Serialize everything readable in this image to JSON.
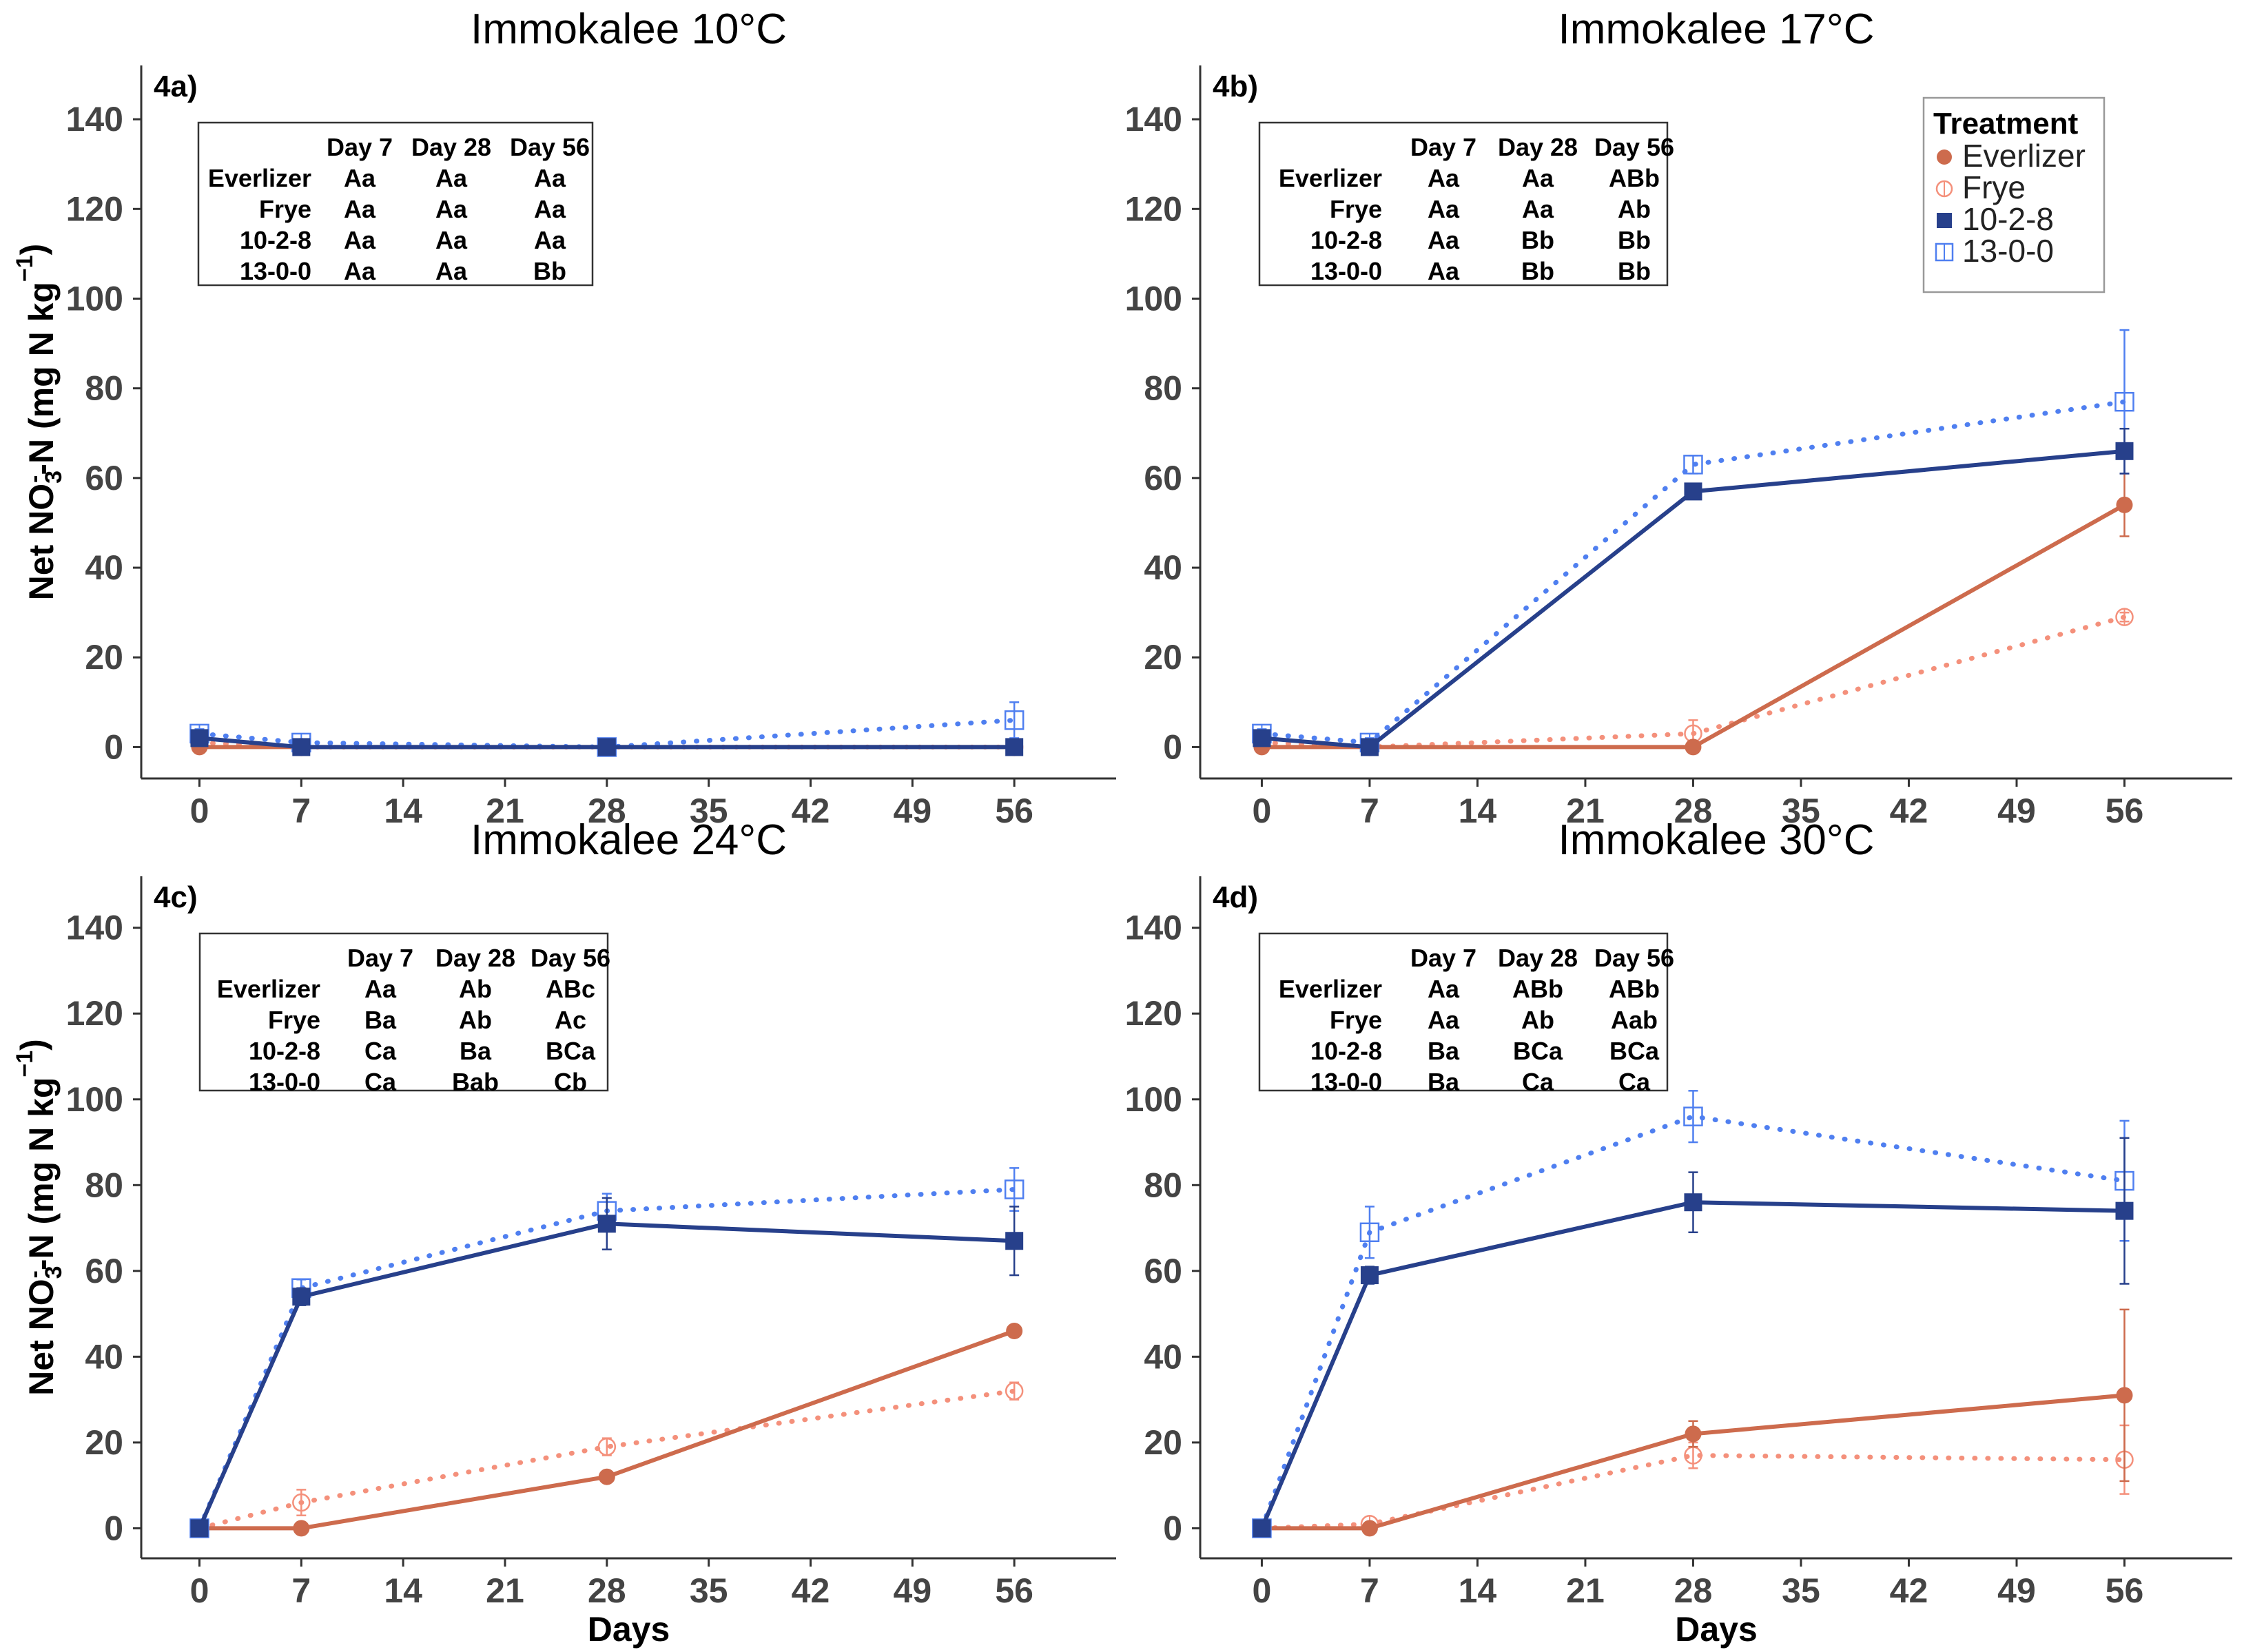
{
  "figure": {
    "y_axis_label_parts": [
      "Net NO",
      "3",
      "-",
      "-N (mg N kg",
      "−1",
      ")"
    ],
    "x_axis_label": "Days",
    "legend": {
      "title": "Treatment",
      "entries": [
        {
          "name": "Everlizer",
          "color": "#CD6B4D",
          "marker": "filled-circle",
          "line": "solid"
        },
        {
          "name": "Frye",
          "color": "#F4907B",
          "marker": "open-circle",
          "line": "dotted"
        },
        {
          "name": "10-2-8",
          "color": "#27408B",
          "marker": "filled-square",
          "line": "solid"
        },
        {
          "name": "13-0-0",
          "color": "#4F7FF0",
          "marker": "open-square",
          "line": "dotted"
        }
      ]
    }
  },
  "chart_data": [
    {
      "type": "line",
      "panel": "4a)",
      "title": "Immokalee 10°C",
      "x_ticks": [
        0,
        7,
        14,
        21,
        28,
        35,
        42,
        49,
        56
      ],
      "y_ticks": [
        0,
        20,
        40,
        60,
        80,
        100,
        120,
        140
      ],
      "xlim": [
        -4,
        63
      ],
      "ylim": [
        -7,
        152
      ],
      "x": [
        0,
        7,
        28,
        56
      ],
      "series": [
        {
          "name": "Everlizer",
          "values": [
            0,
            0,
            0,
            0
          ],
          "err": [
            0,
            0,
            0,
            0
          ]
        },
        {
          "name": "Frye",
          "values": [
            1,
            0,
            0,
            0
          ],
          "err": [
            0,
            0,
            0,
            0
          ]
        },
        {
          "name": "10-2-8",
          "values": [
            2,
            0,
            0,
            0
          ],
          "err": [
            1,
            0,
            0,
            0
          ]
        },
        {
          "name": "13-0-0",
          "values": [
            3,
            1,
            0,
            6
          ],
          "err": [
            1,
            0,
            0,
            4
          ]
        }
      ],
      "stats_table": {
        "columns": [
          "Day 7",
          "Day 28",
          "Day 56"
        ],
        "rows": [
          {
            "label": "Everlizer",
            "cells": [
              "Aa",
              "Aa",
              "Aa"
            ]
          },
          {
            "label": "Frye",
            "cells": [
              "Aa",
              "Aa",
              "Aa"
            ]
          },
          {
            "label": "10-2-8",
            "cells": [
              "Aa",
              "Aa",
              "Aa"
            ]
          },
          {
            "label": "13-0-0",
            "cells": [
              "Aa",
              "Aa",
              "Bb"
            ]
          }
        ]
      }
    },
    {
      "type": "line",
      "panel": "4b)",
      "title": "Immokalee 17°C",
      "x_ticks": [
        0,
        7,
        14,
        21,
        28,
        35,
        42,
        49,
        56
      ],
      "y_ticks": [
        0,
        20,
        40,
        60,
        80,
        100,
        120,
        140
      ],
      "xlim": [
        -4,
        63
      ],
      "ylim": [
        -7,
        152
      ],
      "x": [
        0,
        7,
        28,
        56
      ],
      "series": [
        {
          "name": "Everlizer",
          "values": [
            0,
            0,
            0,
            54
          ],
          "err": [
            0,
            0,
            0,
            7
          ]
        },
        {
          "name": "Frye",
          "values": [
            1,
            0,
            3,
            29
          ],
          "err": [
            0,
            0,
            3,
            1
          ]
        },
        {
          "name": "10-2-8",
          "values": [
            2,
            0,
            57,
            66
          ],
          "err": [
            1,
            0,
            1,
            5
          ]
        },
        {
          "name": "13-0-0",
          "values": [
            3,
            1,
            63,
            77
          ],
          "err": [
            1,
            1,
            2,
            16
          ]
        }
      ],
      "stats_table": {
        "columns": [
          "Day 7",
          "Day 28",
          "Day 56"
        ],
        "rows": [
          {
            "label": "Everlizer",
            "cells": [
              "Aa",
              "Aa",
              "ABb"
            ]
          },
          {
            "label": "Frye",
            "cells": [
              "Aa",
              "Aa",
              "Ab"
            ]
          },
          {
            "label": "10-2-8",
            "cells": [
              "Aa",
              "Bb",
              "Bb"
            ]
          },
          {
            "label": "13-0-0",
            "cells": [
              "Aa",
              "Bb",
              "Bb"
            ]
          }
        ]
      }
    },
    {
      "type": "line",
      "panel": "4c)",
      "title": "Immokalee 24°C",
      "x_ticks": [
        0,
        7,
        14,
        21,
        28,
        35,
        42,
        49,
        56
      ],
      "y_ticks": [
        0,
        20,
        40,
        60,
        80,
        100,
        120,
        140
      ],
      "xlim": [
        -4,
        63
      ],
      "ylim": [
        -7,
        152
      ],
      "x": [
        0,
        7,
        28,
        56
      ],
      "series": [
        {
          "name": "Everlizer",
          "values": [
            0,
            0,
            12,
            46
          ],
          "err": [
            0,
            0,
            1,
            1
          ]
        },
        {
          "name": "Frye",
          "values": [
            0,
            6,
            19,
            32
          ],
          "err": [
            0,
            3,
            2,
            2
          ]
        },
        {
          "name": "10-2-8",
          "values": [
            0,
            54,
            71,
            67
          ],
          "err": [
            0,
            2,
            6,
            8
          ]
        },
        {
          "name": "13-0-0",
          "values": [
            0,
            56,
            74,
            79
          ],
          "err": [
            0,
            2,
            4,
            5
          ]
        }
      ],
      "stats_table": {
        "columns": [
          "Day 7",
          "Day 28",
          "Day 56"
        ],
        "rows": [
          {
            "label": "Everlizer",
            "cells": [
              "Aa",
              "Ab",
              "ABc"
            ]
          },
          {
            "label": "Frye",
            "cells": [
              "Ba",
              "Ab",
              "Ac"
            ]
          },
          {
            "label": "10-2-8",
            "cells": [
              "Ca",
              "Ba",
              "BCa"
            ]
          },
          {
            "label": "13-0-0",
            "cells": [
              "Ca",
              "Bab",
              "Cb"
            ]
          }
        ]
      }
    },
    {
      "type": "line",
      "panel": "4d)",
      "title": "Immokalee 30°C",
      "x_ticks": [
        0,
        7,
        14,
        21,
        28,
        35,
        42,
        49,
        56
      ],
      "y_ticks": [
        0,
        20,
        40,
        60,
        80,
        100,
        120,
        140
      ],
      "xlim": [
        -4,
        63
      ],
      "ylim": [
        -7,
        152
      ],
      "x": [
        0,
        7,
        28,
        56
      ],
      "series": [
        {
          "name": "Everlizer",
          "values": [
            0,
            0,
            22,
            31
          ],
          "err": [
            0,
            0,
            3,
            20
          ]
        },
        {
          "name": "Frye",
          "values": [
            0,
            1,
            17,
            16
          ],
          "err": [
            0,
            0,
            3,
            8
          ]
        },
        {
          "name": "10-2-8",
          "values": [
            0,
            59,
            76,
            74
          ],
          "err": [
            0,
            2,
            7,
            17
          ]
        },
        {
          "name": "13-0-0",
          "values": [
            0,
            69,
            96,
            81
          ],
          "err": [
            0,
            6,
            6,
            14
          ]
        }
      ],
      "stats_table": {
        "columns": [
          "Day 7",
          "Day 28",
          "Day 56"
        ],
        "rows": [
          {
            "label": "Everlizer",
            "cells": [
              "Aa",
              "ABb",
              "ABb"
            ]
          },
          {
            "label": "Frye",
            "cells": [
              "Aa",
              "Ab",
              "Aab"
            ]
          },
          {
            "label": "10-2-8",
            "cells": [
              "Ba",
              "BCa",
              "BCa"
            ]
          },
          {
            "label": "13-0-0",
            "cells": [
              "Ba",
              "Ca",
              "Ca"
            ]
          }
        ]
      }
    }
  ]
}
